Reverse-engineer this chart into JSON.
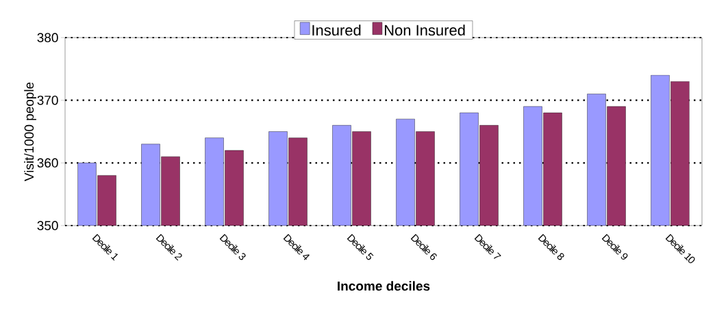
{
  "chart_data": {
    "type": "bar",
    "xlabel": "Income deciles",
    "ylabel": "Visit/1000 people",
    "categories": [
      "Decile 1",
      "Decile 2",
      "Decile 3",
      "Decile 4",
      "Decile 5",
      "Decile 6",
      "Decile 7",
      "Decile 8",
      "Decile 9",
      "Decile 10"
    ],
    "series": [
      {
        "name": "Insured",
        "color": "#9999ff",
        "values": [
          360,
          363,
          364,
          365,
          366,
          367,
          368,
          369,
          371,
          374
        ]
      },
      {
        "name": "Non Insured",
        "color": "#993366",
        "values": [
          358,
          361,
          362,
          364,
          365,
          365,
          366,
          368,
          369,
          373
        ]
      }
    ],
    "ylim": [
      350,
      380
    ],
    "yticks": [
      350,
      360,
      370,
      380
    ],
    "grid": "y",
    "legend": "top"
  }
}
